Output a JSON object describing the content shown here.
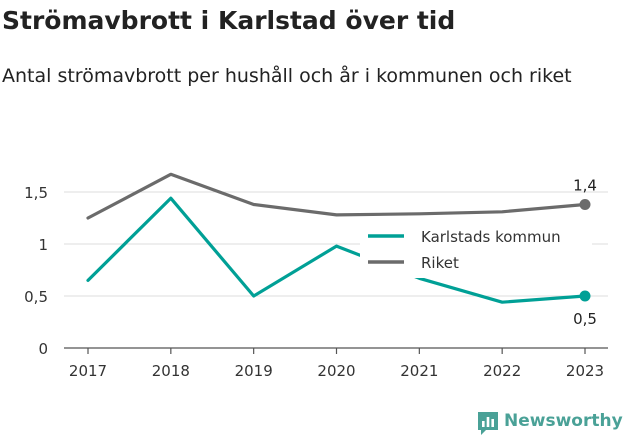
{
  "title": "Strömavbrott i Karlstad över tid",
  "subtitle": "Antal strömavbrott per hushåll och år i kommunen och riket",
  "brand": {
    "name": "Newsworthy",
    "color": "#4aa197",
    "icon": "bar-chart-badge-icon"
  },
  "chart_data": {
    "type": "line",
    "title": "Strömavbrott i Karlstad över tid",
    "subtitle": "Antal strömavbrott per hushåll och år i kommunen och riket",
    "xlabel": "",
    "ylabel": "",
    "x": [
      "2017",
      "2018",
      "2019",
      "2020",
      "2021",
      "2022",
      "2023"
    ],
    "ylim": [
      0,
      1.5
    ],
    "yticks": [
      0,
      0.5,
      1,
      1.5
    ],
    "ytick_labels": [
      "0",
      "0,5",
      "1",
      "1,5"
    ],
    "grid": "horizontal",
    "legend_position": "right",
    "series": [
      {
        "name": "Karlstads kommun",
        "color": "#00a096",
        "values": [
          0.65,
          1.44,
          0.5,
          0.98,
          0.67,
          0.44,
          0.5
        ],
        "end_label": "0,5"
      },
      {
        "name": "Riket",
        "color": "#6b6b6b",
        "values": [
          1.25,
          1.67,
          1.38,
          1.28,
          1.29,
          1.31,
          1.38
        ],
        "end_label": "1,4"
      }
    ]
  }
}
